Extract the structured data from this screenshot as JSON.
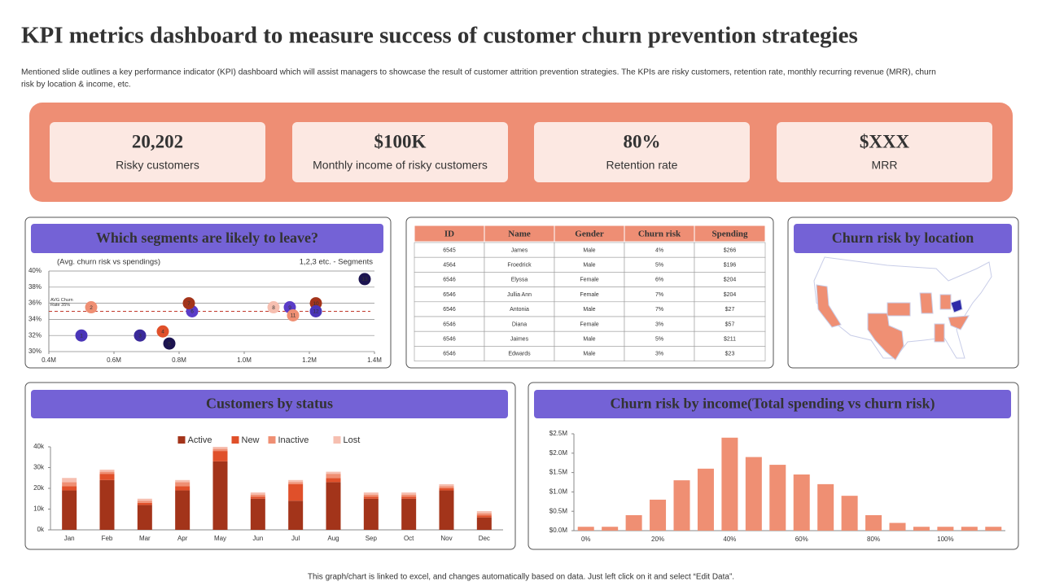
{
  "title": "KPI metrics dashboard to measure success of customer churn prevention strategies",
  "subtitle": [
    "Mentioned slide outlines a key performance indicator (KPI) dashboard which will assist managers to showcase the result of customer attrition prevention strategies. The KPIs are risky customers, retention rate, monthly recurring revenue (MRR), churn",
    "risk by location & income, etc."
  ],
  "kpis": [
    {
      "value": "20,202",
      "label": "Risky customers"
    },
    {
      "value": "$100K",
      "label": "Monthly  income of risky customers"
    },
    {
      "value": "80%",
      "label": "Retention rate"
    },
    {
      "value": "$XXX",
      "label": "MRR"
    }
  ],
  "table": {
    "headers": [
      "ID",
      "Name",
      "Gender",
      "Churn risk",
      "Spending"
    ],
    "rows": [
      [
        "6545",
        "James",
        "Male",
        "4%",
        "$266"
      ],
      [
        "4564",
        "Froedrick",
        "Male",
        "5%",
        "$196"
      ],
      [
        "6546",
        "Elyssa",
        "Female",
        "6%",
        "$204"
      ],
      [
        "6546",
        "Jullia Ann",
        "Female",
        "7%",
        "$204"
      ],
      [
        "6546",
        "Antonia",
        "Male",
        "7%",
        "$27"
      ],
      [
        "6546",
        "Diana",
        "Female",
        "3%",
        "$57"
      ],
      [
        "6546",
        "Jaimes",
        "Male",
        "5%",
        "$211"
      ],
      [
        "6546",
        "Edwards",
        "Male",
        "3%",
        "$23"
      ]
    ]
  },
  "location": {
    "title": "Churn risk by location"
  },
  "chart_data": [
    {
      "type": "scatter",
      "title": "Which segments are likely to leave?",
      "subtitle": "(Avg. churn risk vs spendings)",
      "annotation": "1,2,3 etc. - Segments",
      "points": [
        {
          "label": "1",
          "x": 0.5,
          "y": 32,
          "color": "#4a35b8"
        },
        {
          "label": "2",
          "x": 0.53,
          "y": 35.5,
          "color": "#ef8f73"
        },
        {
          "label": "3",
          "x": 0.68,
          "y": 32,
          "color": "#3a2a9a"
        },
        {
          "label": "4",
          "x": 0.75,
          "y": 32.5,
          "color": "#e0502a"
        },
        {
          "label": "5",
          "x": 0.77,
          "y": 31,
          "color": "#1c1450"
        },
        {
          "label": "6",
          "x": 0.84,
          "y": 35,
          "color": "#5a3cc8"
        },
        {
          "label": "7",
          "x": 0.83,
          "y": 36,
          "color": "#a3341a"
        },
        {
          "label": "8",
          "x": 1.09,
          "y": 35.5,
          "color": "#f6bfb0"
        },
        {
          "label": "9",
          "x": 1.14,
          "y": 35.5,
          "color": "#5a3cc8"
        },
        {
          "label": "10",
          "x": 1.22,
          "y": 36,
          "color": "#a3341a"
        },
        {
          "label": "11",
          "x": 1.15,
          "y": 34.5,
          "color": "#ef8f73"
        },
        {
          "label": "12",
          "x": 1.22,
          "y": 35,
          "color": "#4a35b8"
        },
        {
          "label": "13",
          "x": 1.37,
          "y": 39,
          "color": "#1c1450"
        }
      ],
      "reference_line": {
        "value": 35,
        "label": [
          "AVG Churn",
          "Rate 35%"
        ],
        "color": "#c0392b"
      },
      "xlim": [
        0.4,
        1.4
      ],
      "xticks": [
        {
          "value": 0.4,
          "label": "0.4M"
        },
        {
          "value": 0.6,
          "label": "0.6M"
        },
        {
          "value": 0.8,
          "label": "0.8M"
        },
        {
          "value": 1.0,
          "label": "1.0M"
        },
        {
          "value": 1.2,
          "label": "1.2M"
        },
        {
          "value": 1.4,
          "label": "1.4M"
        }
      ],
      "ylim": [
        30,
        40
      ],
      "yticks": [
        {
          "value": 30,
          "label": "30%"
        },
        {
          "value": 32,
          "label": "32%"
        },
        {
          "value": 34,
          "label": "34%"
        },
        {
          "value": 36,
          "label": "36%"
        },
        {
          "value": 38,
          "label": "38%"
        },
        {
          "value": 40,
          "label": "40%"
        }
      ],
      "grid": true
    },
    {
      "type": "bar",
      "stacked": true,
      "title": "Customers by status",
      "categories": [
        "Jan",
        "Feb",
        "Mar",
        "Apr",
        "May",
        "Jun",
        "Jul",
        "Aug",
        "Sep",
        "Oct",
        "Nov",
        "Dec"
      ],
      "series": [
        {
          "name": "Active",
          "color": "#a3341a",
          "values": [
            19000,
            24000,
            12000,
            19000,
            33000,
            15000,
            14000,
            23000,
            15000,
            15000,
            19000,
            6000
          ]
        },
        {
          "name": "New",
          "color": "#e0502a",
          "values": [
            2000,
            3000,
            1000,
            2000,
            5000,
            1000,
            8000,
            2000,
            1000,
            1000,
            1000,
            1000
          ]
        },
        {
          "name": "Inactive",
          "color": "#ef8f73",
          "values": [
            2000,
            1000,
            1000,
            2000,
            1000,
            1000,
            1000,
            2000,
            1000,
            1000,
            1000,
            1000
          ]
        },
        {
          "name": "Lost",
          "color": "#f6bfb0",
          "values": [
            2000,
            1000,
            1000,
            1000,
            1000,
            1000,
            1000,
            1000,
            1000,
            1000,
            1000,
            1000
          ]
        }
      ],
      "ylim": [
        0,
        40000
      ],
      "yticks": [
        {
          "value": 0,
          "label": "0k"
        },
        {
          "value": 10000,
          "label": "10k"
        },
        {
          "value": 20000,
          "label": "20k"
        },
        {
          "value": 30000,
          "label": "30k"
        },
        {
          "value": 40000,
          "label": "40k"
        }
      ],
      "legend": "top"
    },
    {
      "type": "bar",
      "title": "Churn risk by income(Total spending vs churn risk)",
      "categories": [
        "0%",
        null,
        null,
        "20%",
        null,
        null,
        "40%",
        null,
        null,
        "60%",
        null,
        null,
        "80%",
        null,
        null,
        "100%",
        null,
        null
      ],
      "values": [
        100000,
        100000,
        400000,
        800000,
        1300000,
        1600000,
        2400000,
        1900000,
        1700000,
        1450000,
        1200000,
        900000,
        400000,
        200000,
        100000,
        100000,
        100000,
        100000
      ],
      "color": "#ef8f73",
      "ylim": [
        0,
        2500000
      ],
      "yticks": [
        {
          "value": 0,
          "label": "$0.0M"
        },
        {
          "value": 500000,
          "label": "$0.5M"
        },
        {
          "value": 1000000,
          "label": "$1.0M"
        },
        {
          "value": 1500000,
          "label": "$1.5M"
        },
        {
          "value": 2000000,
          "label": "$2.0M"
        },
        {
          "value": 2500000,
          "label": "$2.5M"
        }
      ]
    }
  ],
  "footer": "This graph/chart is linked to excel, and changes automatically based on data. Just left click on it and select “Edit Data”."
}
